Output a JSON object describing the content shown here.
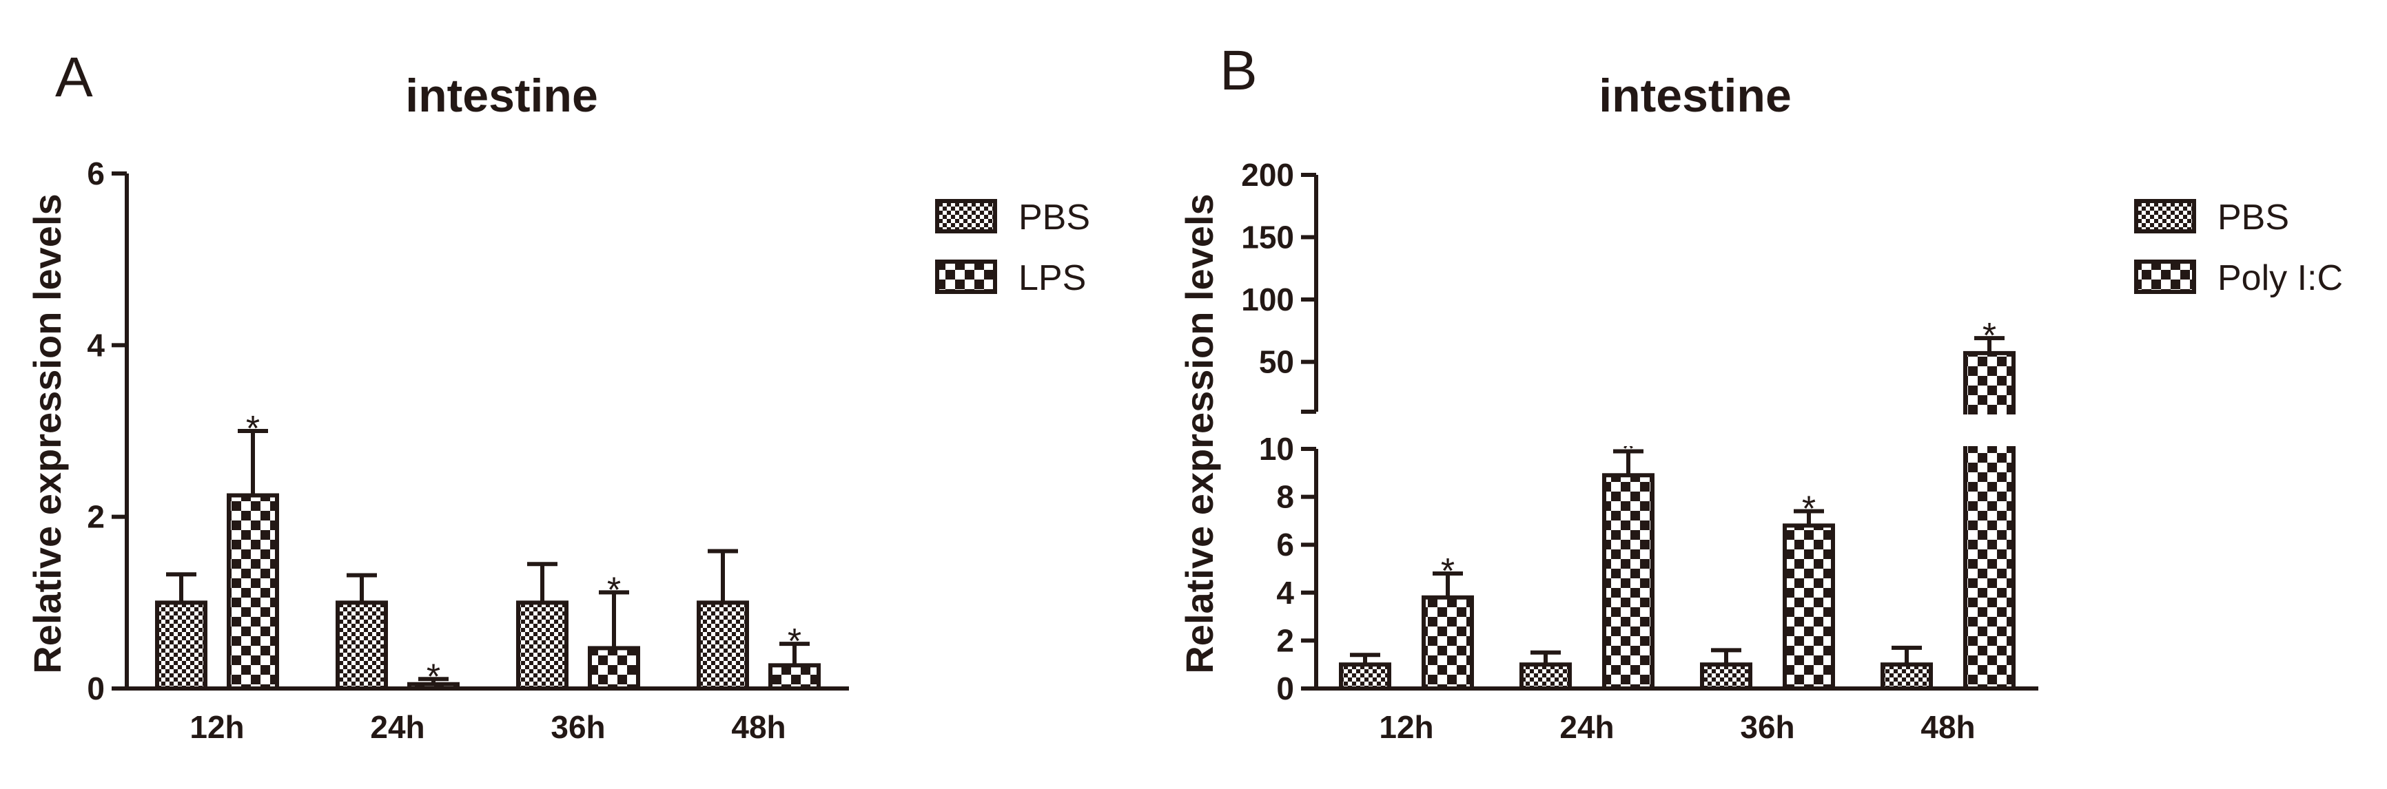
{
  "colors": {
    "ink": "#231815",
    "background": "#ffffff"
  },
  "chart_data": [
    {
      "panel": "A",
      "type": "bar",
      "title": "intestine",
      "ylabel": "Relative expression levels",
      "xlabel": "",
      "categories": [
        "12h",
        "24h",
        "36h",
        "48h"
      ],
      "ylim": [
        0,
        6
      ],
      "yticks": [
        0,
        2,
        4,
        6
      ],
      "legend_position": "right",
      "series": [
        {
          "name": "PBS",
          "pattern": "fine-checker",
          "values": [
            1.0,
            1.0,
            1.0,
            1.0
          ],
          "errors": [
            0.33,
            0.32,
            0.45,
            0.6
          ]
        },
        {
          "name": "LPS",
          "pattern": "coarse-checker",
          "values": [
            2.25,
            0.05,
            0.47,
            0.27
          ],
          "errors": [
            0.75,
            0.06,
            0.65,
            0.25
          ],
          "significance": [
            "*",
            "*",
            "*",
            "*"
          ]
        }
      ]
    },
    {
      "panel": "B",
      "type": "bar",
      "title": "intestine",
      "ylabel": "Relative expression levels",
      "xlabel": "",
      "categories": [
        "12h",
        "24h",
        "36h",
        "48h"
      ],
      "axis_break": true,
      "ylim_lower": [
        0,
        10
      ],
      "yticks_lower": [
        0,
        2,
        4,
        6,
        8,
        10
      ],
      "ylim_upper": [
        10,
        200
      ],
      "yticks_upper": [
        50,
        100,
        150,
        200
      ],
      "legend_position": "right",
      "series": [
        {
          "name": "PBS",
          "pattern": "fine-checker",
          "values": [
            1.0,
            1.0,
            1.0,
            1.0
          ],
          "errors": [
            0.4,
            0.5,
            0.6,
            0.7
          ]
        },
        {
          "name": "Poly I:C",
          "pattern": "coarse-checker",
          "values": [
            3.8,
            8.9,
            6.8,
            57.0
          ],
          "errors": [
            1.0,
            1.0,
            0.6,
            12.0
          ],
          "significance": [
            "*",
            "*",
            "*",
            "*"
          ]
        }
      ]
    }
  ]
}
